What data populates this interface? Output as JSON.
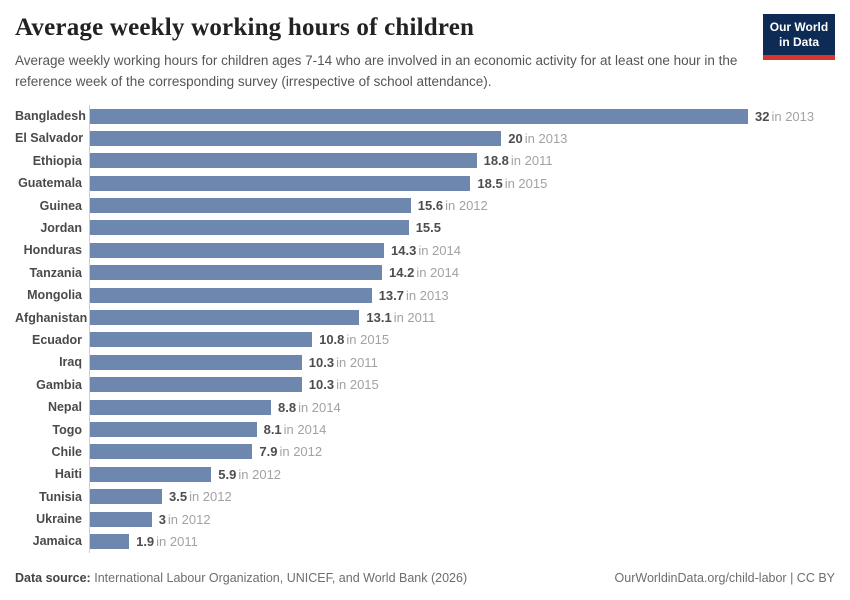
{
  "header": {
    "title": "Average weekly working hours of children",
    "subtitle": "Average weekly working hours for children ages 7-14 who are involved in an economic activity for at least one hour in the reference week of the corresponding survey (irrespective of school attendance).",
    "logo": {
      "line1": "Our World",
      "line2": "in Data"
    }
  },
  "chart_data": {
    "type": "bar",
    "orientation": "horizontal",
    "title": "Average weekly working hours of children",
    "xlabel": "",
    "ylabel": "",
    "xlim": [
      0,
      32
    ],
    "grid": false,
    "legend": false,
    "bar_color": "#6e87af",
    "categories": [
      "Bangladesh",
      "El Salvador",
      "Ethiopia",
      "Guatemala",
      "Guinea",
      "Jordan",
      "Honduras",
      "Tanzania",
      "Mongolia",
      "Afghanistan",
      "Ecuador",
      "Iraq",
      "Gambia",
      "Nepal",
      "Togo",
      "Chile",
      "Haiti",
      "Tunisia",
      "Ukraine",
      "Jamaica"
    ],
    "values": [
      32,
      20,
      18.8,
      18.5,
      15.6,
      15.5,
      14.3,
      14.2,
      13.7,
      13.1,
      10.8,
      10.3,
      10.3,
      8.8,
      8.1,
      7.9,
      5.9,
      3.5,
      3,
      1.9
    ],
    "value_labels": [
      "32",
      "20",
      "18.8",
      "18.5",
      "15.6",
      "15.5",
      "14.3",
      "14.2",
      "13.7",
      "13.1",
      "10.8",
      "10.3",
      "10.3",
      "8.8",
      "8.1",
      "7.9",
      "5.9",
      "3.5",
      "3",
      "1.9"
    ],
    "year_labels": [
      "in 2013",
      "in 2013",
      "in 2011",
      "in 2015",
      "in 2012",
      "",
      "in 2014",
      "in 2014",
      "in 2013",
      "in 2011",
      "in 2015",
      "in 2011",
      "in 2015",
      "in 2014",
      "in 2014",
      "in 2012",
      "in 2012",
      "in 2012",
      "in 2012",
      "in 2011"
    ]
  },
  "footer": {
    "datasource_label": "Data source:",
    "datasource_text": "International Labour Organization, UNICEF, and World Bank (2026)",
    "link": "OurWorldinData.org/child-labor | CC BY"
  },
  "colors": {
    "bar": "#6e87af",
    "axis_line": "#cccccc",
    "logo_navy": "#0d2b55",
    "logo_red": "#d8352b"
  }
}
